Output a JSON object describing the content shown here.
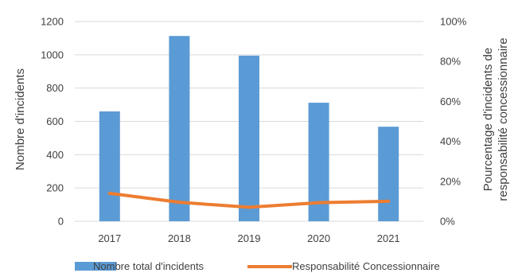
{
  "chart_data": {
    "type": "bar",
    "categories": [
      "2017",
      "2018",
      "2019",
      "2020",
      "2021"
    ],
    "series": [
      {
        "name": "Nombre total d'incidents",
        "type": "bar",
        "axis": "left",
        "color": "#5B9BD5",
        "values": [
          660,
          1113,
          995,
          712,
          568
        ]
      },
      {
        "name": "Responsabilité Concessionnaire",
        "type": "line",
        "axis": "right",
        "color": "#ED7D31",
        "values": [
          0.14,
          0.095,
          0.07,
          0.093,
          0.1
        ]
      }
    ],
    "ylabel": "Nombre d'incidents",
    "ylabel_right_line1": "Pourcentage d'incidents de",
    "ylabel_right_line2": "responsabilité concessionnaire",
    "ylim": [
      0,
      1200
    ],
    "yticks": [
      "0",
      "200",
      "400",
      "600",
      "800",
      "1000",
      "1200"
    ],
    "ylim_right": [
      0,
      1
    ],
    "yticks_right": [
      "0%",
      "20%",
      "40%",
      "60%",
      "80%",
      "100%"
    ],
    "grid": "horizontal",
    "legend_position": "bottom"
  }
}
